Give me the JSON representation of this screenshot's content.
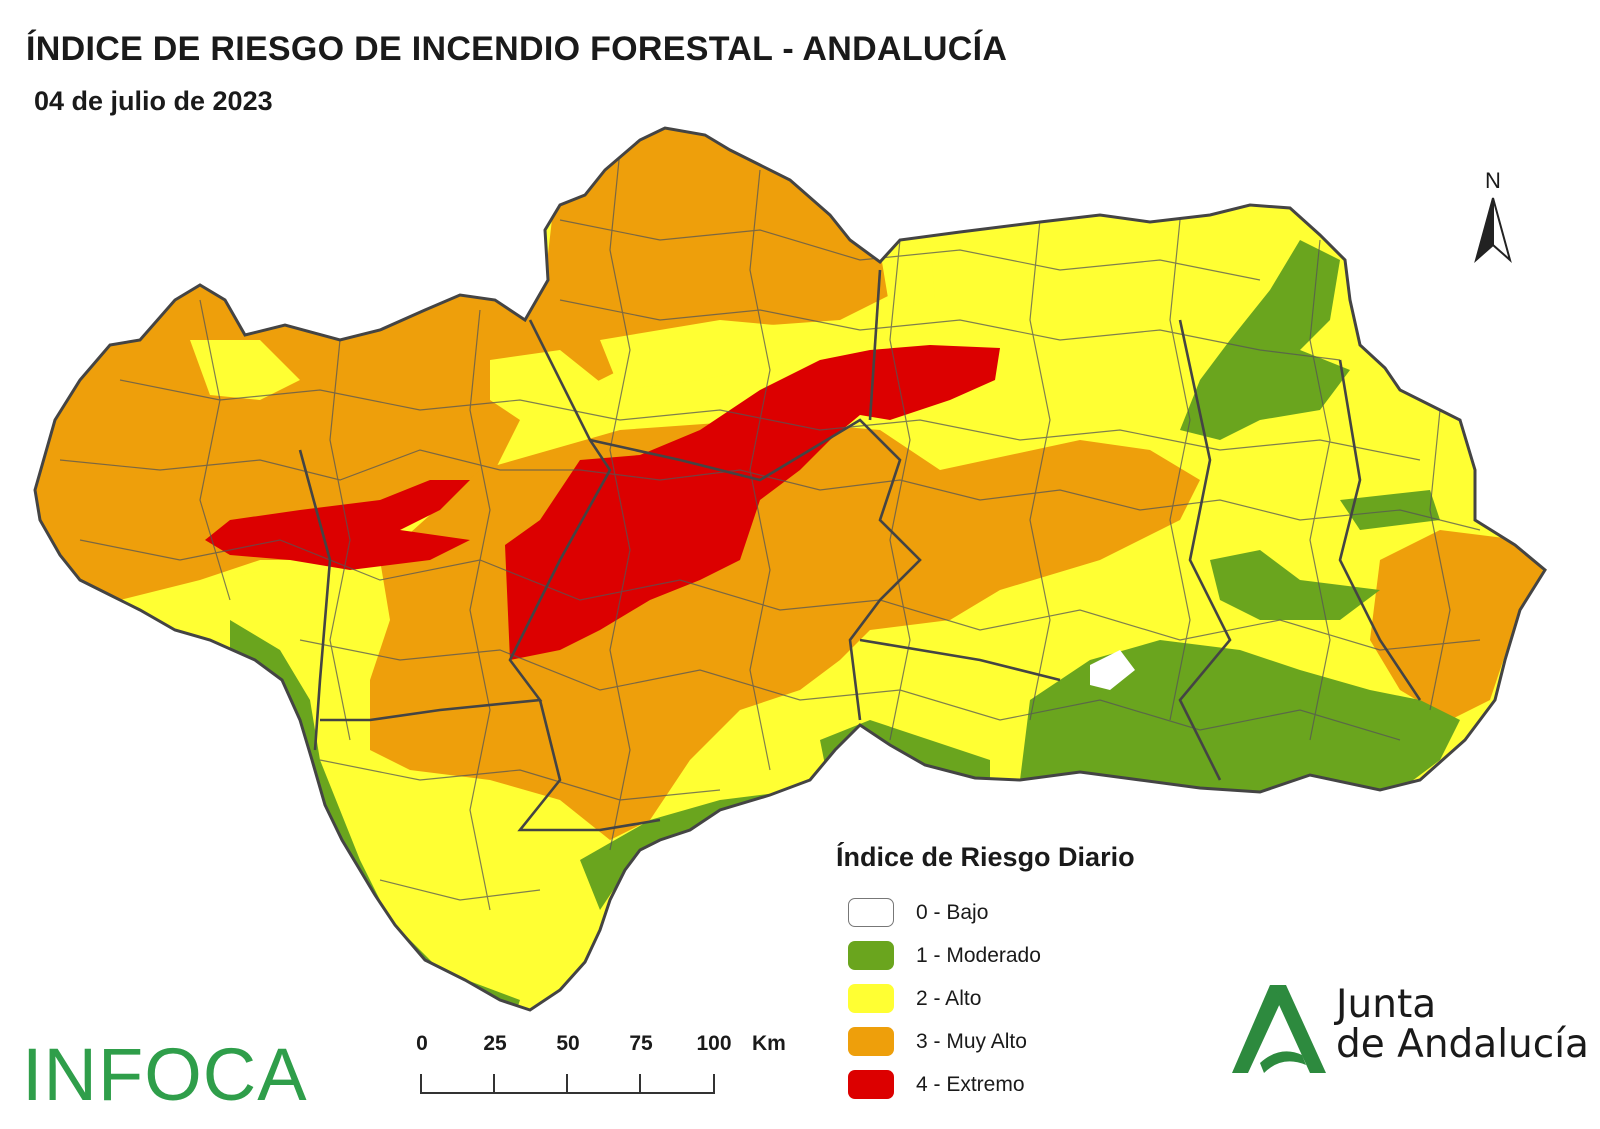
{
  "title": "ÍNDICE DE RIESGO DE INCENDIO FORESTAL - ANDALUCÍA",
  "date": "04 de julio de 2023",
  "north_label": "N",
  "legend": {
    "title": "Índice de Riesgo Diario",
    "items": [
      {
        "label": "0 - Bajo",
        "color": "#ffffff"
      },
      {
        "label": "1 - Moderado",
        "color": "#6aa51e"
      },
      {
        "label": "2 - Alto",
        "color": "#ffff33"
      },
      {
        "label": "3 - Muy Alto",
        "color": "#ee9f0b"
      },
      {
        "label": "4 - Extremo",
        "color": "#dc0000"
      }
    ]
  },
  "scale": {
    "ticks": [
      "0",
      "25",
      "50",
      "75",
      "100"
    ],
    "unit": "Km"
  },
  "logos": {
    "infoca": "INFOCA",
    "junta_line1": "Junta",
    "junta_line2": "de Andalucía",
    "junta_color": "#2d8a3e"
  },
  "map_colors": {
    "boundary": "#555555",
    "province_boundary": "#444444"
  }
}
